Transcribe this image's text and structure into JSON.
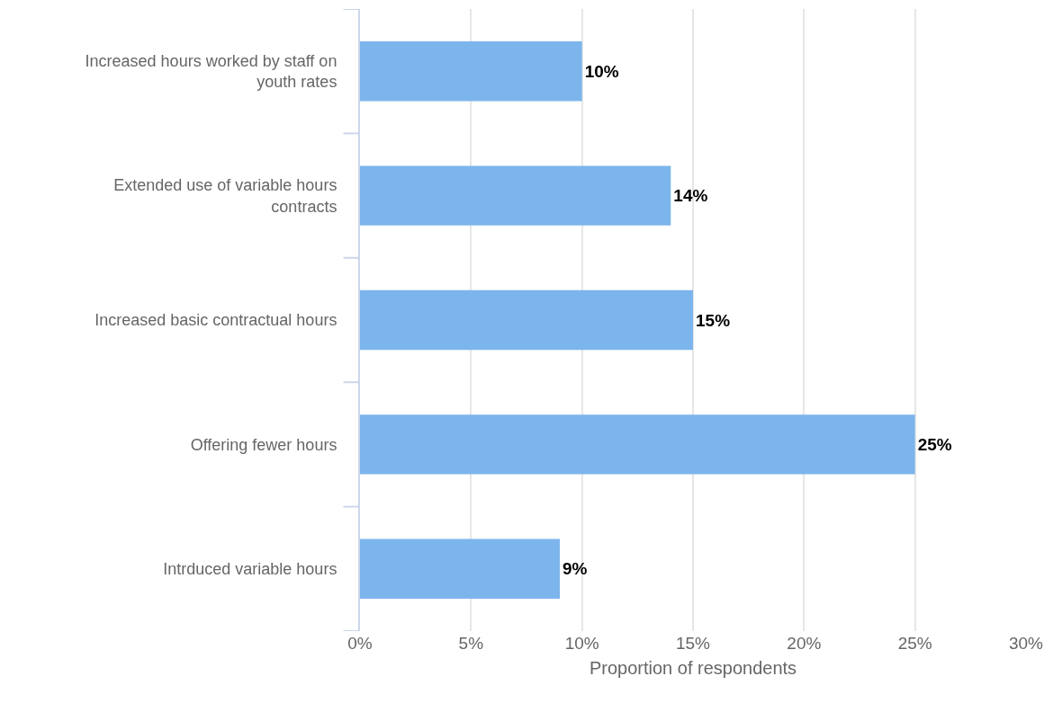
{
  "chart_data": {
    "type": "bar",
    "orientation": "horizontal",
    "xlabel": "Proportion of respondents",
    "categories": [
      "Increased hours worked by staff on youth rates",
      "Extended use of variable hours contracts",
      "Increased basic contractual hours",
      "Offering fewer hours",
      "Intrduced variable hours"
    ],
    "values": [
      10,
      14,
      15,
      25,
      9
    ],
    "value_labels": [
      "10%",
      "14%",
      "15%",
      "25%",
      "9%"
    ],
    "color": "#7cb5ec",
    "xlim": [
      0,
      30
    ],
    "xticks": [
      {
        "value": 0,
        "label": "0%"
      },
      {
        "value": 5,
        "label": "5%"
      },
      {
        "value": 10,
        "label": "10%"
      },
      {
        "value": 15,
        "label": "15%"
      },
      {
        "value": 20,
        "label": "20%"
      },
      {
        "value": 25,
        "label": "25%"
      },
      {
        "value": 30,
        "label": "30%"
      }
    ],
    "grid": "x",
    "legend": false
  }
}
